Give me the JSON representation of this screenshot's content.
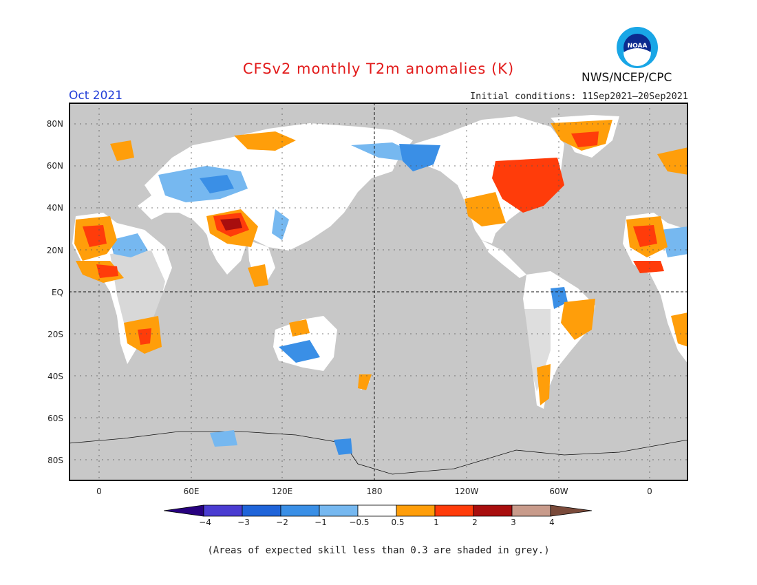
{
  "header": {
    "title": "CFSv2 monthly T2m anomalies (K)",
    "month": "Oct 2021",
    "initial_conditions": "Initial conditions: 11Sep2021–20Sep2021",
    "agency": "NWS/NCEP/CPC",
    "logo_text": "NOAA"
  },
  "map": {
    "lat_labels": [
      "80N",
      "60N",
      "40N",
      "20N",
      "EQ",
      "20S",
      "40S",
      "60S",
      "80S"
    ],
    "lon_labels": [
      "0",
      "60E",
      "120E",
      "180",
      "120W",
      "60W",
      "0"
    ],
    "background_color": "#c8c8c8",
    "land_color": "#ffffff"
  },
  "colorbar": {
    "labels": [
      "−4",
      "−3",
      "−2",
      "−1",
      "−0.5",
      "0.5",
      "1",
      "2",
      "3",
      "4"
    ],
    "colors": [
      "#27007f",
      "#4a3cd1",
      "#1f64d9",
      "#3a8fe6",
      "#76b8f0",
      "#ffffff",
      "#ff9e0a",
      "#ff3c0a",
      "#a80e0e",
      "#c89b8b",
      "#7a4a3a"
    ]
  },
  "footer": {
    "note": "(Areas of expected skill less than 0.3 are shaded in grey.)"
  }
}
